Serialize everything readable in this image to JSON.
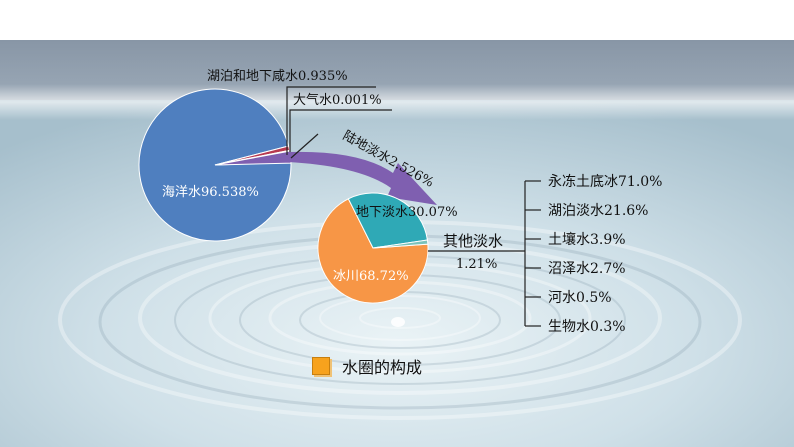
{
  "colors": {
    "ocean": "#4f7fbf",
    "lake_ground_salt": "#b8394f",
    "atmosphere": "#c9c9c9",
    "glacier": "#f79646",
    "groundwater_fresh": "#2fa9b6",
    "other_fresh": "#7bc3bb",
    "arrow": "#7f5fb0",
    "legend_swatch": "#f7a21d"
  },
  "legend": {
    "icon": "orange-square-icon",
    "label": "水圈的构成"
  },
  "chart_data": [
    {
      "type": "pie",
      "slices": [
        {
          "label": "海洋水96.538%",
          "value": 96.538,
          "color": "#4f7fbf"
        },
        {
          "label": "湖泊和地下咸水0.935%",
          "value": 0.935,
          "color": "#b8394f"
        },
        {
          "label": "大气水0.001%",
          "value": 0.001,
          "color": "#c9c9c9"
        },
        {
          "label": "陆地淡水2.526%",
          "value": 2.526,
          "color": "#7f5fb0"
        }
      ]
    },
    {
      "type": "pie",
      "slices": [
        {
          "label": "冰川68.72%",
          "value": 68.72,
          "color": "#f79646"
        },
        {
          "label": "地下淡水30.07%",
          "value": 30.07,
          "color": "#2fa9b6"
        },
        {
          "label": "其他淡水",
          "label2": "1.21%",
          "value": 1.21,
          "color": "#7bc3bb"
        }
      ]
    },
    {
      "type": "table",
      "items": [
        "永冻土底冰71.0%",
        "湖泊淡水21.6%",
        "土壤水3.9%",
        "沼泽水2.7%",
        "河水0.5%",
        "生物水0.3%"
      ]
    }
  ]
}
